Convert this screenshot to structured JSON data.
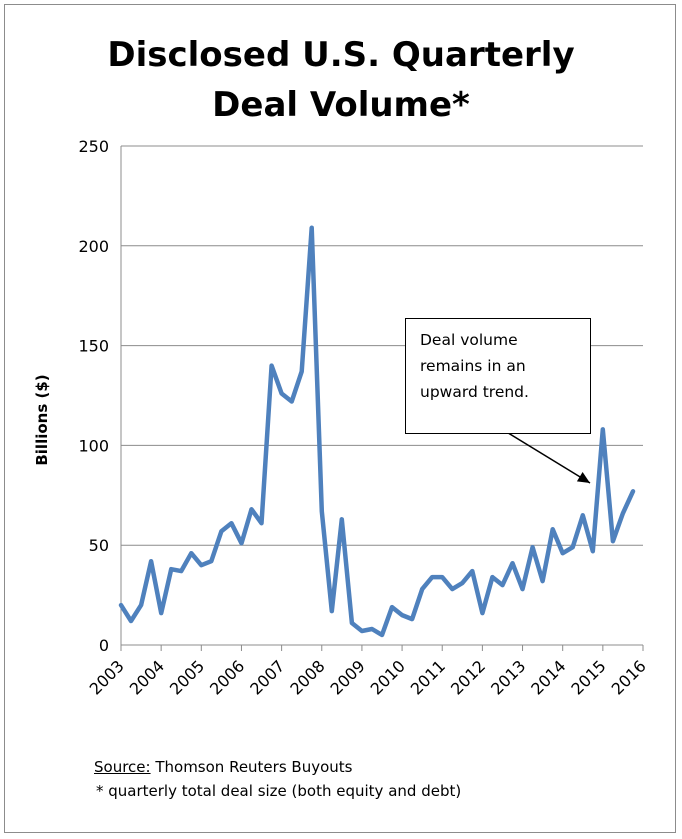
{
  "chart_data": {
    "type": "line",
    "title": [
      "Disclosed U.S. Quarterly",
      "Deal Volume*"
    ],
    "xlabel": "",
    "ylabel": "Billions ($)",
    "ylim": [
      0,
      250
    ],
    "yticks": [
      0,
      50,
      100,
      150,
      200,
      250
    ],
    "xticks": [
      "2003",
      "2004",
      "2005",
      "2006",
      "2007",
      "2008",
      "2009",
      "2010",
      "2011",
      "2012",
      "2013",
      "2014",
      "2015",
      "2016"
    ],
    "grid": true,
    "line_color": "#4f81bd",
    "series": [
      {
        "x": [
          2003.0,
          2003.25,
          2003.5,
          2003.75,
          2004.0,
          2004.25,
          2004.5,
          2004.75,
          2005.0,
          2005.25,
          2005.5,
          2005.75,
          2006.0,
          2006.25,
          2006.5,
          2006.75,
          2007.0,
          2007.25,
          2007.5,
          2007.75,
          2008.0,
          2008.25,
          2008.5,
          2008.75,
          2009.0,
          2009.25,
          2009.5,
          2009.75,
          2010.0,
          2010.25,
          2010.5,
          2010.75,
          2011.0,
          2011.25,
          2011.5,
          2011.75,
          2012.0,
          2012.25,
          2012.5,
          2012.75,
          2013.0,
          2013.25,
          2013.5,
          2013.75,
          2014.0,
          2014.25,
          2014.5,
          2014.75,
          2015.0,
          2015.25,
          2015.5,
          2015.75,
          2016.0
        ],
        "values": [
          20,
          12,
          20,
          42,
          16,
          38,
          37,
          46,
          40,
          42,
          57,
          61,
          51,
          68,
          61,
          140,
          126,
          122,
          137,
          209,
          67,
          17,
          63,
          11,
          7,
          8,
          5,
          19,
          15,
          13,
          28,
          34,
          34,
          28,
          31,
          37,
          16,
          34,
          30,
          41,
          28,
          49,
          32,
          58,
          46,
          49,
          65,
          47,
          108,
          52,
          66,
          77,
          null
        ]
      }
    ],
    "annotation": [
      "Deal volume",
      "remains in an",
      "upward trend."
    ]
  },
  "source_label": "Source:",
  "source_text": " Thomson Reuters Buyouts",
  "footnote": "* quarterly total deal size (both equity and debt)"
}
